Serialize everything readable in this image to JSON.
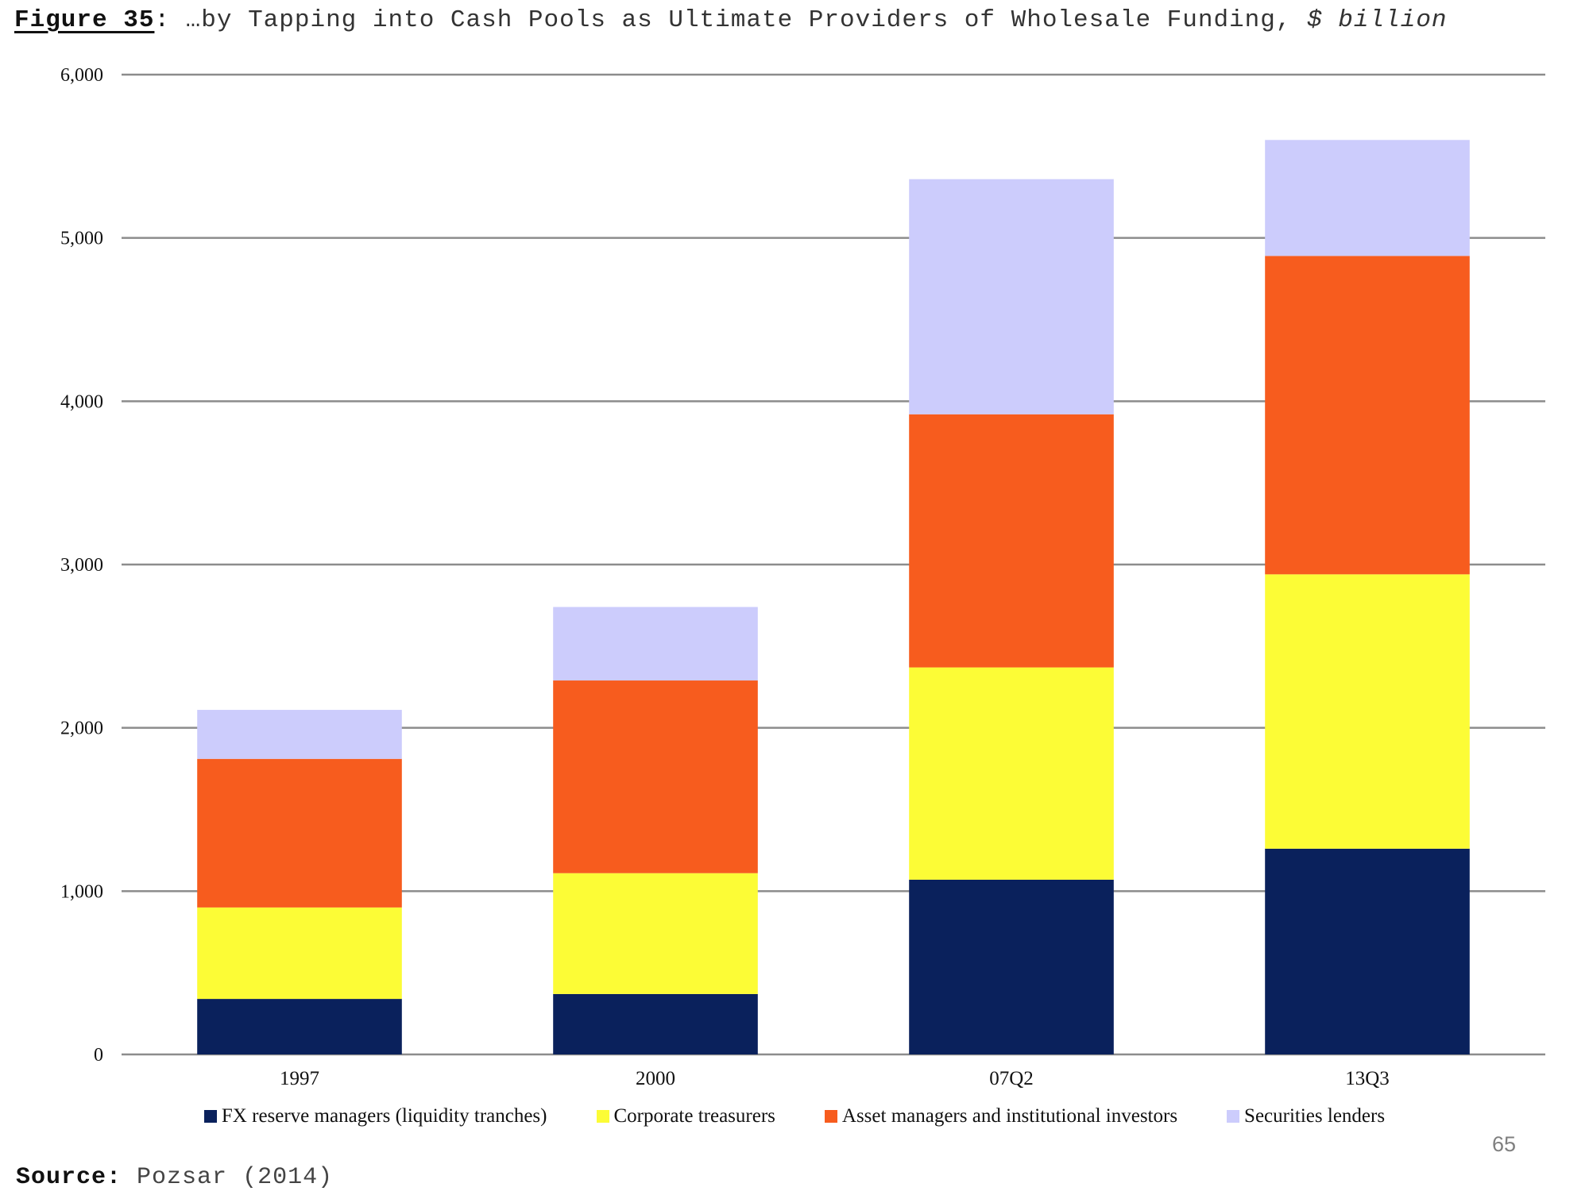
{
  "header": {
    "figure_label": "Figure 35",
    "title": "…by Tapping into Cash Pools as Ultimate Providers of Wholesale Funding,",
    "unit": "$ billion"
  },
  "footer": {
    "source_label": "Source:",
    "source_value": "Pozsar (2014)",
    "page_number": "65"
  },
  "chart_data": {
    "type": "bar",
    "stacked": true,
    "categories": [
      "1997",
      "2000",
      "07Q2",
      "13Q3"
    ],
    "series": [
      {
        "name": "FX reserve managers (liquidity tranches)",
        "color": "#0a215c",
        "values": [
          340,
          370,
          1070,
          1260
        ]
      },
      {
        "name": "Corporate treasurers",
        "color": "#fcfc36",
        "values": [
          560,
          740,
          1300,
          1680
        ]
      },
      {
        "name": "Asset managers and institutional investors",
        "color": "#f75c1e",
        "values": [
          910,
          1180,
          1550,
          1950
        ]
      },
      {
        "name": "Securities lenders",
        "color": "#ccccfc",
        "values": [
          300,
          450,
          1440,
          710
        ]
      }
    ],
    "ylim": [
      0,
      6000
    ],
    "yticks": [
      0,
      1000,
      2000,
      3000,
      4000,
      5000,
      6000
    ],
    "ytick_labels": [
      "0",
      "1,000",
      "2,000",
      "3,000",
      "4,000",
      "5,000",
      "6,000"
    ],
    "grid": true,
    "legend_position": "bottom",
    "gridline_color": "#8c8c8c"
  }
}
